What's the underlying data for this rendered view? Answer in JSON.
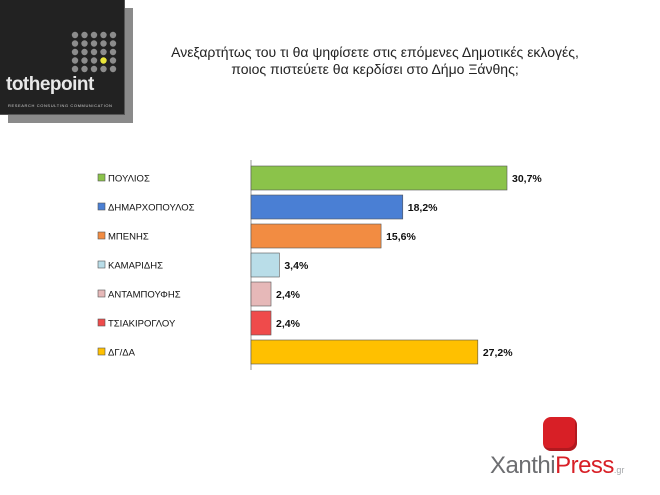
{
  "brand": {
    "name": "tothepoint",
    "tagline": "RESEARCH  CONSULTING  COMMUNICATION"
  },
  "chart_data": {
    "type": "bar",
    "orientation": "horizontal",
    "title_lines": [
      "Ανεξαρτήτως του τι θα ψηφίσετε στις επόμενες Δημοτικές εκλογές,",
      "ποιος  πιστεύετε  θα κερδίσει  στο Δήμο Ξάνθης;"
    ],
    "categories": [
      "ΠΟΥΛΙΟΣ",
      "ΔΗΜΑΡΧΟΠΟΥΛΟΣ",
      "ΜΠΕΝΗΣ",
      "ΚΑΜΑΡΙΔΗΣ",
      "ΑΝΤΑΜΠΟΥΦΗΣ",
      "ΤΣΙΑΚΙΡΟΓΛΟΥ",
      "ΔΓ/ΔΑ"
    ],
    "values": [
      30.7,
      18.2,
      15.6,
      3.4,
      2.4,
      2.4,
      27.2
    ],
    "value_labels": [
      "30,7%",
      "18,2%",
      "15,6%",
      "3,4%",
      "2,4%",
      "2,4%",
      "27,2%"
    ],
    "colors": [
      "#8bc34a",
      "#4a7fd4",
      "#f28c42",
      "#b9dde8",
      "#e6b8b8",
      "#ef4b4b",
      "#ffc000"
    ],
    "legend": "left",
    "grid": false
  },
  "footer_brand": {
    "part1": "Xanthi",
    "part2": "Press",
    "suffix": ".gr"
  }
}
